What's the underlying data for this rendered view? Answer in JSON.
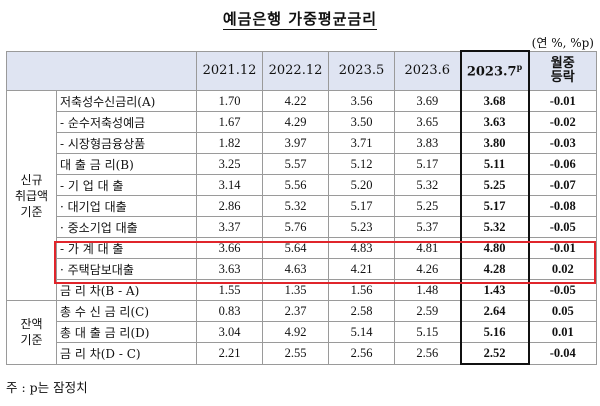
{
  "title": "예금은행 가중평균금리",
  "unit": "(연 %, %p)",
  "columns": {
    "c1": "2021.12",
    "c2": "2022.12",
    "c3": "2023.5",
    "c4": "2023.6",
    "c5_main": "2023.7",
    "c5_sup": "p",
    "c6_line1": "월중",
    "c6_line2": "등락"
  },
  "groups": {
    "new_line1": "신규",
    "new_line2": "취급액",
    "new_line3": "기준",
    "bal_line1": "잔액",
    "bal_line2": "기준"
  },
  "rows": [
    {
      "label": "저축성수신금리(A)",
      "v1": "1.70",
      "v2": "4.22",
      "v3": "3.56",
      "v4": "3.69",
      "v5": "3.68",
      "v6": "-0.01"
    },
    {
      "label": "- 순수저축성예금",
      "v1": "1.67",
      "v2": "4.29",
      "v3": "3.50",
      "v4": "3.65",
      "v5": "3.63",
      "v6": "-0.02"
    },
    {
      "label": "- 시장형금융상품",
      "v1": "1.82",
      "v2": "3.97",
      "v3": "3.71",
      "v4": "3.83",
      "v5": "3.80",
      "v6": "-0.03"
    },
    {
      "label": "대 출 금 리(B)",
      "v1": "3.25",
      "v2": "5.57",
      "v3": "5.12",
      "v4": "5.17",
      "v5": "5.11",
      "v6": "-0.06"
    },
    {
      "label": "- 기 업 대 출",
      "v1": "3.14",
      "v2": "5.56",
      "v3": "5.20",
      "v4": "5.32",
      "v5": "5.25",
      "v6": "-0.07"
    },
    {
      "label": "· 대기업 대출",
      "v1": "2.86",
      "v2": "5.32",
      "v3": "5.17",
      "v4": "5.25",
      "v5": "5.17",
      "v6": "-0.08"
    },
    {
      "label": "· 중소기업 대출",
      "v1": "3.37",
      "v2": "5.76",
      "v3": "5.23",
      "v4": "5.37",
      "v5": "5.32",
      "v6": "-0.05"
    },
    {
      "label": "- 가 계 대 출",
      "v1": "3.66",
      "v2": "5.64",
      "v3": "4.83",
      "v4": "4.81",
      "v5": "4.80",
      "v6": "-0.01"
    },
    {
      "label": "· 주택담보대출",
      "v1": "3.63",
      "v2": "4.63",
      "v3": "4.21",
      "v4": "4.26",
      "v5": "4.28",
      "v6": "0.02"
    },
    {
      "label": "금 리 차(B - A)",
      "v1": "1.55",
      "v2": "1.35",
      "v3": "1.56",
      "v4": "1.48",
      "v5": "1.43",
      "v6": "-0.05"
    },
    {
      "label": "총 수 신 금 리(C)",
      "v1": "0.83",
      "v2": "2.37",
      "v3": "2.58",
      "v4": "2.59",
      "v5": "2.64",
      "v6": "0.05"
    },
    {
      "label": "총 대 출 금 리(D)",
      "v1": "3.04",
      "v2": "4.92",
      "v3": "5.14",
      "v4": "5.15",
      "v5": "5.16",
      "v6": "0.01"
    },
    {
      "label": "금 리 차(D - C)",
      "v1": "2.21",
      "v2": "2.55",
      "v3": "2.56",
      "v4": "2.56",
      "v5": "2.52",
      "v6": "-0.04"
    }
  ],
  "note": "주 : p는 잠정치",
  "highlight_color": "#e0252b",
  "header_bg": "#dfe4f2"
}
